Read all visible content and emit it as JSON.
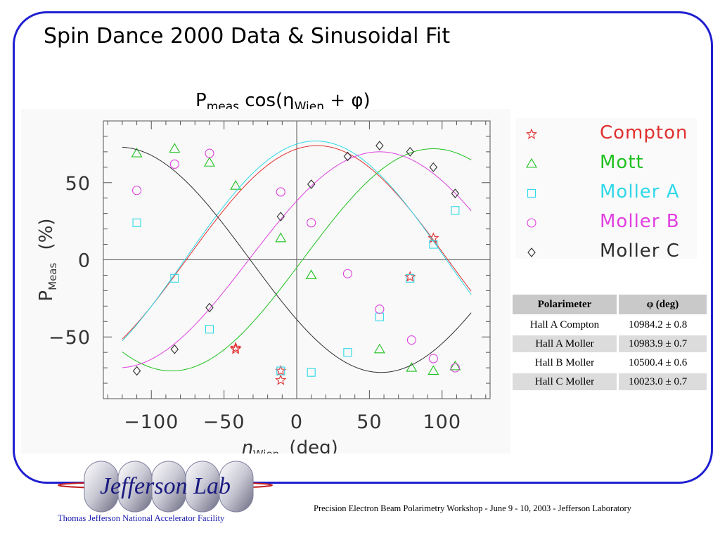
{
  "slide": {
    "title": "Spin Dance 2000 Data & Sinusoidal Fit"
  },
  "formula": {
    "p": "P",
    "sub_meas": "meas",
    "cos_open": " cos(",
    "eta": "η",
    "sub_wien": "Wien",
    "plus_phi": " + φ)"
  },
  "chart_data": {
    "type": "scatter",
    "xlabel": "η",
    "xlabel_sub": "Wien",
    "xlabel_unit": "(deg)",
    "ylabel": "P",
    "ylabel_sub": "Meas",
    "ylabel_unit": "(%)",
    "xlim": [
      -133,
      133
    ],
    "ylim": [
      -90,
      90
    ],
    "xticks": [
      -100,
      -50,
      0,
      50,
      100
    ],
    "yticks": [
      -50,
      0,
      50
    ],
    "xtick_labels": [
      "−100",
      "−50",
      "0",
      "50",
      "100"
    ],
    "ytick_labels": [
      "−50",
      "0",
      "50"
    ],
    "zero_lines": true,
    "series": [
      {
        "name": "Compton",
        "color": "#e03030",
        "marker": "star",
        "fit": {
          "amp": 74,
          "phase_deg": -14
        },
        "points": [
          [
            -42,
            -57
          ],
          [
            -42,
            -58
          ],
          [
            -11,
            -72
          ],
          [
            -11,
            -78
          ],
          [
            78,
            -11
          ],
          [
            94,
            14
          ]
        ]
      },
      {
        "name": "Mott",
        "color": "#20c020",
        "marker": "triangle",
        "fit": {
          "amp": 72,
          "phase_deg": -94
        },
        "points": [
          [
            -110,
            69
          ],
          [
            -84,
            72
          ],
          [
            -60,
            63
          ],
          [
            -42,
            48
          ],
          [
            -11,
            14
          ],
          [
            10,
            -10
          ],
          [
            57,
            -58
          ],
          [
            79,
            -70
          ],
          [
            94,
            -72
          ],
          [
            109,
            -69
          ]
        ]
      },
      {
        "name": "Moller A",
        "color": "#30d8e8",
        "marker": "square",
        "fit": {
          "amp": 77,
          "phase_deg": -13
        },
        "points": [
          [
            -110,
            24
          ],
          [
            -84,
            -12
          ],
          [
            -60,
            -45
          ],
          [
            -11,
            -72
          ],
          [
            10,
            -73
          ],
          [
            35,
            -60
          ],
          [
            57,
            -37
          ],
          [
            78,
            -12
          ],
          [
            94,
            10
          ],
          [
            109,
            32
          ]
        ]
      },
      {
        "name": "Moller B",
        "color": "#e040e0",
        "marker": "circle",
        "fit": {
          "amp": 70,
          "phase_deg": -57
        },
        "points": [
          [
            -110,
            45
          ],
          [
            -84,
            62
          ],
          [
            -60,
            69
          ],
          [
            -11,
            44
          ],
          [
            10,
            24
          ],
          [
            35,
            -9
          ],
          [
            57,
            -32
          ],
          [
            79,
            -52
          ],
          [
            94,
            -64
          ],
          [
            109,
            -70
          ]
        ]
      },
      {
        "name": "Moller C",
        "color": "#303030",
        "marker": "diamond",
        "fit": {
          "amp": 73,
          "phase_deg": 122
        },
        "points": [
          [
            -110,
            -72
          ],
          [
            -84,
            -58
          ],
          [
            -60,
            -31
          ],
          [
            -11,
            28
          ],
          [
            10,
            49
          ],
          [
            35,
            67
          ],
          [
            57,
            74
          ],
          [
            78,
            70
          ],
          [
            94,
            60
          ],
          [
            109,
            43
          ]
        ]
      }
    ]
  },
  "legend": {
    "items": [
      {
        "label": "Compton",
        "color": "#e03030",
        "marker": "star"
      },
      {
        "label": "Mott",
        "color": "#20c020",
        "marker": "triangle"
      },
      {
        "label": "Moller  A",
        "color": "#30d8e8",
        "marker": "square"
      },
      {
        "label": "Moller  B",
        "color": "#e040e0",
        "marker": "circle"
      },
      {
        "label": "Moller  C",
        "color": "#303030",
        "marker": "diamond"
      }
    ]
  },
  "table": {
    "header": [
      "Polarimeter",
      "φ (deg)"
    ],
    "rows": [
      [
        "Hall A Compton",
        "10984.2 ± 0.8"
      ],
      [
        "Hall A Moller",
        "10983.9 ± 0.7"
      ],
      [
        "Hall B Moller",
        "10500.4 ± 0.6"
      ],
      [
        "Hall C Moller",
        "10023.0 ± 0.7"
      ]
    ]
  },
  "logo": {
    "text": "Jefferson Lab",
    "facility": "Thomas Jefferson National Accelerator Facility"
  },
  "footer": {
    "text": "Precision Electron Beam Polarimetry Workshop - June 9 - 10, 2003 - Jefferson Laboratory"
  },
  "colors": {
    "frame": "#1f1fd0",
    "facility_text": "#1a1ab0"
  }
}
